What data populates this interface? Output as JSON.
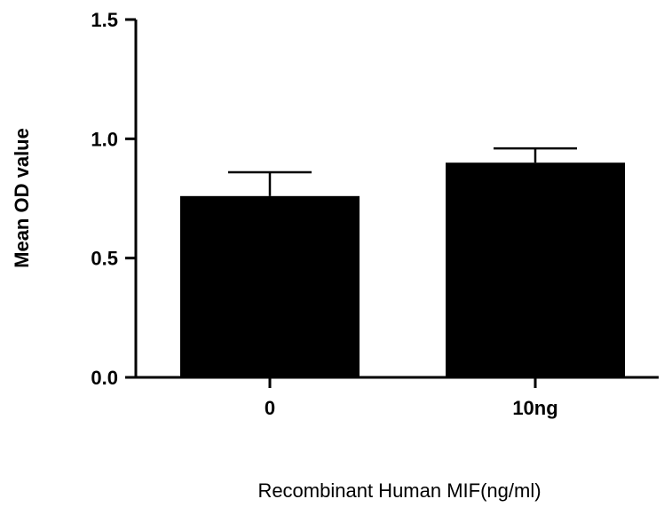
{
  "chart_data": {
    "type": "bar",
    "categories": [
      "0",
      "10ng"
    ],
    "values": [
      0.76,
      0.9
    ],
    "error_upper": [
      0.86,
      0.96
    ],
    "title": "",
    "xlabel": "Recombinant Human MIF(ng/ml)",
    "ylabel": "Mean OD value",
    "ylim": [
      0,
      1.5
    ],
    "yticks": [
      "0.0",
      "0.5",
      "1.0",
      "1.5"
    ],
    "grid": false,
    "bar_color": "#000000",
    "axis_color": "#000000"
  }
}
